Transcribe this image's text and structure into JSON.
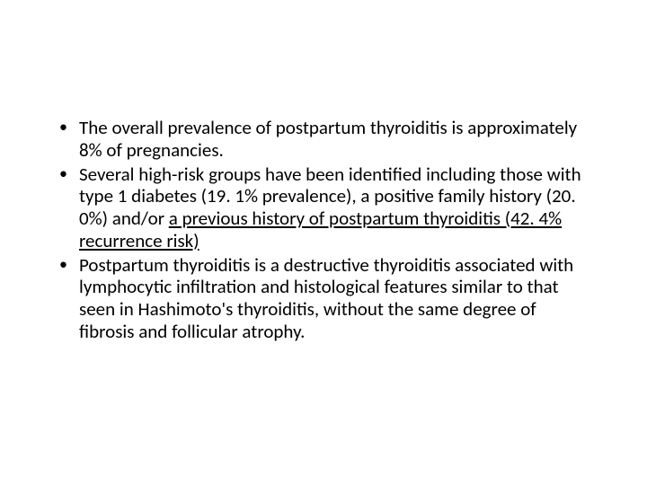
{
  "slide": {
    "bullets": [
      {
        "pre": "The overall prevalence of postpartum thyroiditis is approximately 8% of pregnancies.",
        "underlined": "",
        "post": ""
      },
      {
        "pre": "Several high-risk groups have been identified including those with type 1 diabetes (19. 1% prevalence), a positive family history (20. 0%) and/or ",
        "underlined": "a previous history of postpartum thyroiditis (42. 4% recurrence risk)",
        "post": ""
      },
      {
        "pre": "Postpartum thyroiditis is a destructive thyroiditis associated with lymphocytic infiltration and histological features similar to that seen in Hashimoto's thyroiditis, without the same degree of fibrosis and follicular atrophy.",
        "underlined": "",
        "post": ""
      }
    ],
    "text_color": "#000000",
    "background_color": "#ffffff",
    "font_size_pt": 21,
    "line_height": 1.18
  }
}
